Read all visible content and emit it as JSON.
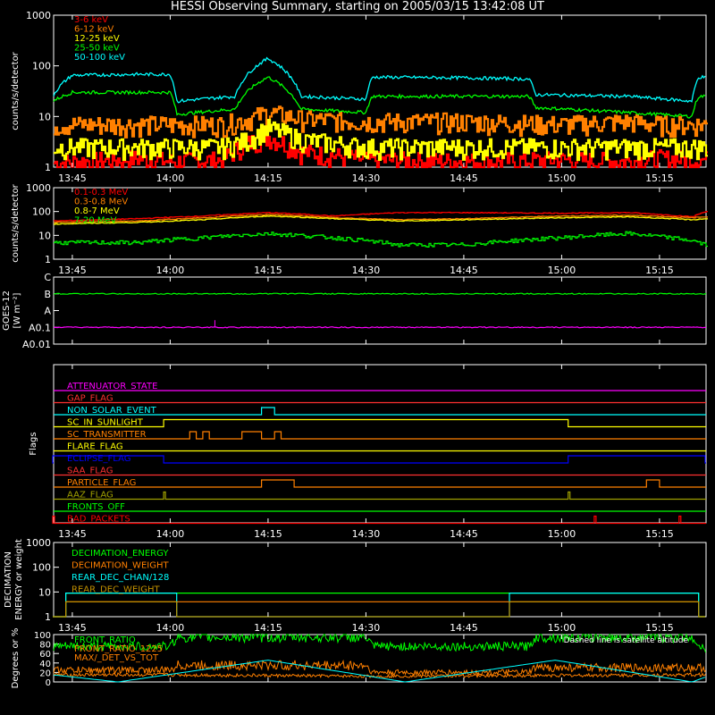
{
  "title": "HESSI Observing Summary, starting on 2005/03/15 13:42:08 UT",
  "time_axis": {
    "start": "13:42:08",
    "end": "15:22:08",
    "ticks": [
      "13:45",
      "14:00",
      "14:15",
      "14:30",
      "14:45",
      "15:00",
      "15:15"
    ]
  },
  "chart_data": [
    {
      "type": "line",
      "panel": "low-energy",
      "ylabel": "counts/s/detector",
      "yscale": "log",
      "ylim": [
        1,
        1000
      ],
      "ytick_labels": [
        "1",
        "10",
        "100",
        "1000"
      ],
      "series": [
        {
          "name": "3-6 keV",
          "color": "#ff0000",
          "x": [
            "13:42",
            "13:55",
            "14:00",
            "14:08",
            "14:12",
            "14:15",
            "14:20",
            "14:30",
            "14:45",
            "15:00",
            "15:10",
            "15:15",
            "15:22"
          ],
          "values": [
            1.2,
            1.5,
            1.3,
            1.4,
            3.0,
            4.0,
            2.0,
            1.4,
            1.3,
            1.4,
            1.3,
            1.5,
            1.4
          ]
        },
        {
          "name": "6-12 keV",
          "color": "#ff8000",
          "x": [
            "13:42",
            "13:55",
            "14:00",
            "14:08",
            "14:12",
            "14:15",
            "14:20",
            "14:30",
            "14:45",
            "15:00",
            "15:10",
            "15:15",
            "15:22"
          ],
          "values": [
            7,
            7,
            7,
            7,
            9,
            12,
            9,
            8,
            8,
            7,
            8,
            7,
            7
          ]
        },
        {
          "name": "12-25 keV",
          "color": "#ffff00",
          "x": [
            "13:42",
            "13:55",
            "14:00",
            "14:08",
            "14:12",
            "14:15",
            "14:20",
            "14:30",
            "14:45",
            "15:00",
            "15:10",
            "15:15",
            "15:22"
          ],
          "values": [
            2.5,
            2.5,
            2.5,
            2.5,
            3.5,
            6,
            3.5,
            2.5,
            2.5,
            2.5,
            2.5,
            2.5,
            2.5
          ]
        },
        {
          "name": "25-50 keV",
          "color": "#00ff00",
          "x": [
            "13:42",
            "13:45",
            "13:55",
            "14:00",
            "14:01",
            "14:10",
            "14:15",
            "14:20",
            "14:30",
            "14:31",
            "14:45",
            "14:55",
            "14:56",
            "15:10",
            "15:20",
            "15:21",
            "15:22"
          ],
          "values": [
            20,
            30,
            30,
            30,
            11,
            14,
            60,
            14,
            12,
            25,
            25,
            25,
            15,
            12,
            10,
            25,
            25
          ]
        },
        {
          "name": "50-100 keV",
          "color": "#00ffff",
          "x": [
            "13:42",
            "13:45",
            "13:55",
            "14:00",
            "14:01",
            "14:10",
            "14:15",
            "14:20",
            "14:30",
            "14:31",
            "14:45",
            "14:55",
            "14:56",
            "15:10",
            "15:20",
            "15:21",
            "15:22"
          ],
          "values": [
            25,
            65,
            68,
            68,
            20,
            25,
            140,
            25,
            22,
            60,
            58,
            55,
            27,
            25,
            20,
            60,
            60
          ]
        }
      ]
    },
    {
      "type": "line",
      "panel": "high-energy",
      "ylabel": "counts/s/detector",
      "yscale": "log",
      "ylim": [
        1,
        1000
      ],
      "ytick_labels": [
        "1",
        "10",
        "100",
        "1000"
      ],
      "series": [
        {
          "name": "0.1-0.3 MeV",
          "color": "#ff0000",
          "x": [
            "13:42",
            "13:55",
            "14:05",
            "14:15",
            "14:25",
            "14:35",
            "14:45",
            "15:00",
            "15:10",
            "15:20",
            "15:22"
          ],
          "values": [
            40,
            50,
            65,
            90,
            65,
            90,
            90,
            85,
            90,
            60,
            100
          ]
        },
        {
          "name": "0.3-0.8 MeV",
          "color": "#ff8000",
          "x": [
            "13:42",
            "13:55",
            "14:05",
            "14:15",
            "14:25",
            "14:35",
            "14:45",
            "15:00",
            "15:10",
            "15:20",
            "15:22"
          ],
          "values": [
            35,
            40,
            55,
            75,
            55,
            45,
            50,
            65,
            70,
            55,
            60
          ]
        },
        {
          "name": "0.8-7 MeV",
          "color": "#ffff00",
          "x": [
            "13:42",
            "13:55",
            "14:05",
            "14:15",
            "14:25",
            "14:35",
            "14:45",
            "15:00",
            "15:10",
            "15:20",
            "15:22"
          ],
          "values": [
            30,
            35,
            45,
            65,
            50,
            40,
            45,
            55,
            60,
            45,
            50
          ]
        },
        {
          "name": "7-20 MeV",
          "color": "#00ff00",
          "x": [
            "13:42",
            "13:55",
            "14:05",
            "14:15",
            "14:25",
            "14:35",
            "14:45",
            "15:00",
            "15:10",
            "15:20",
            "15:22"
          ],
          "values": [
            5,
            5,
            8,
            12,
            8,
            4,
            4,
            8,
            12,
            6,
            4
          ]
        }
      ]
    },
    {
      "type": "line",
      "panel": "goes",
      "ylabel": "GOES-12",
      "ylabel_unit": "[W m⁻²]",
      "yscale": "log",
      "ytick_labels": [
        "A0.01",
        "A0.1",
        "A",
        "B",
        "C"
      ],
      "series": [
        {
          "name": "",
          "color": "#00ff00",
          "x": [
            "13:42",
            "14:15",
            "14:45",
            "15:22"
          ],
          "values": [
            "B",
            "B",
            "B",
            "B"
          ]
        },
        {
          "name": "",
          "color": "#ff00ff",
          "x": [
            "13:42",
            "15:22"
          ],
          "values": [
            "A0.1",
            "A0.1"
          ]
        }
      ]
    },
    {
      "type": "line",
      "panel": "flags",
      "ylabel": "Flags",
      "series": [
        {
          "name": "ATTENUATOR_STATE",
          "color": "#ff00ff",
          "on": []
        },
        {
          "name": "GAP_FLAG",
          "color": "#ff3030",
          "on": []
        },
        {
          "name": "NON_SOLAR_EVENT",
          "color": "#00ffff",
          "on": [
            [
              "14:14",
              "14:16"
            ]
          ]
        },
        {
          "name": "SC_IN_SUNLIGHT",
          "color": "#ffff00",
          "on": [
            [
              "13:59",
              "15:01"
            ]
          ]
        },
        {
          "name": "SC_TRANSMITTER",
          "color": "#ff8000",
          "on": [
            [
              "14:03",
              "14:04"
            ],
            [
              "14:05",
              "14:06"
            ],
            [
              "14:11",
              "14:14"
            ],
            [
              "14:16",
              "14:17"
            ]
          ]
        },
        {
          "name": "FLARE_FLAG",
          "color": "#ffff00",
          "on": []
        },
        {
          "name": "ECLIPSE_FLAG",
          "color": "#0000ff",
          "on": [
            [
              "13:42",
              "13:59"
            ],
            [
              "15:01",
              "15:22"
            ]
          ]
        },
        {
          "name": "SAA_FLAG",
          "color": "#ff3030",
          "on": []
        },
        {
          "name": "PARTICLE_FLAG",
          "color": "#ff8000",
          "on": [
            [
              "14:14",
              "14:19"
            ],
            [
              "15:13",
              "15:15"
            ]
          ]
        },
        {
          "name": "AAZ_FLAG",
          "color": "#a0a000",
          "on": [
            [
              "13:59",
              "13:59"
            ],
            [
              "15:01",
              "15:01"
            ]
          ]
        },
        {
          "name": "FRONTS_OFF",
          "color": "#00ff00",
          "on": []
        },
        {
          "name": "BAD_PACKETS",
          "color": "#ff0000",
          "on": [
            [
              "13:42",
              "13:42"
            ],
            [
              "15:05",
              "15:05"
            ],
            [
              "15:18",
              "15:18"
            ]
          ]
        }
      ]
    },
    {
      "type": "line",
      "panel": "decimation",
      "ylabel": "DECIMATION",
      "ylabel2": "ENERGY or weight",
      "yscale": "log",
      "ylim": [
        1,
        1000
      ],
      "ytick_labels": [
        "1",
        "10",
        "100",
        "1000"
      ],
      "series": [
        {
          "name": "DECIMATION_ENERGY",
          "color": "#00ff00",
          "x": [
            "13:42",
            "13:44",
            "13:44",
            "15:21",
            "15:21",
            "15:22"
          ],
          "values": [
            1,
            1,
            9,
            9,
            1,
            1
          ]
        },
        {
          "name": "DECIMATION_WEIGHT",
          "color": "#ff8000",
          "x": [
            "13:42",
            "13:44",
            "13:44",
            "15:21",
            "15:21",
            "15:22"
          ],
          "values": [
            1,
            1,
            4,
            4,
            1,
            1
          ]
        },
        {
          "name": "REAR_DEC_CHAN/128",
          "color": "#00ffff",
          "x": [
            "13:42",
            "13:44",
            "13:44",
            "14:01",
            "14:01",
            "14:30",
            "14:30",
            "14:52",
            "14:52",
            "15:21",
            "15:21",
            "15:22"
          ],
          "values": [
            1,
            1,
            9,
            9,
            1,
            1,
            1,
            1,
            9,
            9,
            1,
            1
          ]
        },
        {
          "name": "REAR_DEC_WEIGHT",
          "color": "#c09000",
          "x": [
            "13:42",
            "13:44",
            "13:44",
            "14:01",
            "14:01",
            "14:30",
            "14:30",
            "14:52",
            "14:52",
            "15:21",
            "15:21",
            "15:22"
          ],
          "values": [
            1,
            1,
            4,
            4,
            1,
            1,
            1,
            1,
            4,
            4,
            1,
            1
          ]
        }
      ]
    },
    {
      "type": "line",
      "panel": "ratios",
      "ylabel": "Degrees or %",
      "ylim": [
        0,
        100
      ],
      "ytick_labels": [
        "0",
        "20",
        "40",
        "60",
        "80",
        "100"
      ],
      "series": [
        {
          "name": "FRONT_RATIO",
          "color": "#00ff00",
          "x": [
            "13:42",
            "13:45",
            "14:00",
            "14:01",
            "14:30",
            "14:31",
            "14:55",
            "14:56",
            "15:20",
            "15:22"
          ],
          "values": [
            75,
            75,
            75,
            95,
            95,
            75,
            75,
            95,
            95,
            65
          ]
        },
        {
          "name": "FRONT_RATIO_1225",
          "color": "#ff8000",
          "x": [
            "13:42",
            "14:00",
            "14:01",
            "14:30",
            "14:31",
            "14:55",
            "14:56",
            "15:22"
          ],
          "values": [
            25,
            25,
            35,
            35,
            20,
            20,
            30,
            30
          ]
        },
        {
          "name": "MAX/_DET_VS_TOT",
          "color": "#ff8000",
          "x": [
            "13:42",
            "14:00",
            "14:30",
            "15:22"
          ],
          "values": [
            15,
            15,
            12,
            15
          ]
        },
        {
          "name": "",
          "color": "#00ffff",
          "x": [
            "13:42",
            "13:52",
            "14:15",
            "14:36",
            "14:59",
            "15:20",
            "15:22"
          ],
          "values": [
            15,
            0,
            46,
            0,
            46,
            0,
            10
          ]
        }
      ]
    }
  ],
  "ratio_note": "Dashed line is satellite altitude"
}
